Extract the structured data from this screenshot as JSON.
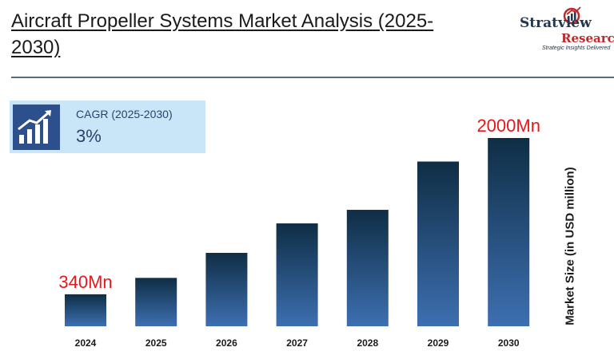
{
  "title": "Aircraft Propeller Systems Market Analysis (2025-2030)",
  "logo": {
    "brand": "Stratview",
    "brand_suffix": "Research",
    "tagline": "Strategic Insights Delivered",
    "registered": "®"
  },
  "cagr": {
    "label": "CAGR (2025-2030)",
    "value": "3%",
    "icon": "growth-chart-icon"
  },
  "colors": {
    "bar_top": "#0f2e45",
    "bar_bottom": "#3d6fb1",
    "callout": "#e8161b",
    "box": "#c9e6f8",
    "icon_bg": "#2d4f8c"
  },
  "chart_data": {
    "type": "bar",
    "categories": [
      "2024",
      "2025",
      "2026",
      "2027",
      "2028",
      "2029",
      "2030"
    ],
    "values": [
      340,
      514,
      780,
      1093,
      1237,
      1750,
      2000
    ],
    "ylabel": "Market Size (in USD million)",
    "ylim": [
      0,
      2000
    ],
    "grid": false,
    "annotations": [
      {
        "category": "2024",
        "text": "340Mn"
      },
      {
        "category": "2030",
        "text": "2000Mn"
      }
    ]
  }
}
